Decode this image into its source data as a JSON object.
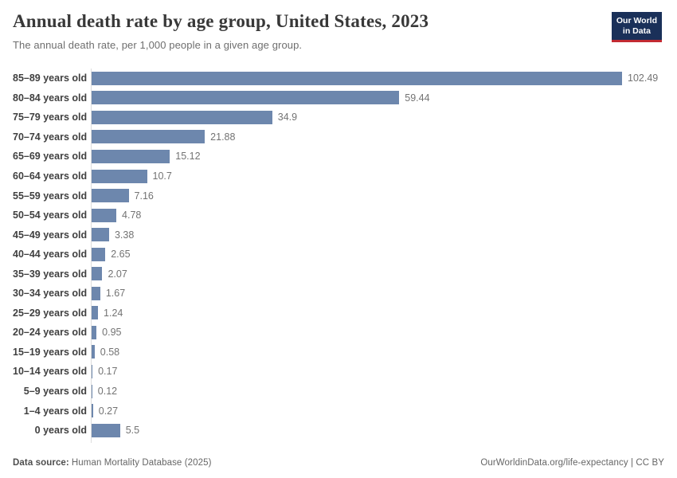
{
  "header": {
    "logo": {
      "line1": "Our World",
      "line2": "in Data"
    }
  },
  "chart_data": {
    "type": "bar",
    "orientation": "horizontal",
    "title": "Annual death rate by age group, United States, 2023",
    "subtitle": "The annual death rate, per 1,000 people in a given age group.",
    "categories": [
      "85–89 years old",
      "80–84 years old",
      "75–79 years old",
      "70–74 years old",
      "65–69 years old",
      "60–64 years old",
      "55–59 years old",
      "50–54 years old",
      "45–49 years old",
      "40–44 years old",
      "35–39 years old",
      "30–34 years old",
      "25–29 years old",
      "20–24 years old",
      "15–19 years old",
      "10–14 years old",
      "5–9 years old",
      "1–4 years old",
      "0 years old"
    ],
    "values": [
      102.49,
      59.44,
      34.9,
      21.88,
      15.12,
      10.7,
      7.16,
      4.78,
      3.38,
      2.65,
      2.07,
      1.67,
      1.24,
      0.95,
      0.58,
      0.17,
      0.12,
      0.27,
      5.5
    ],
    "value_labels": [
      "102.49",
      "59.44",
      "34.9",
      "21.88",
      "15.12",
      "10.7",
      "7.16",
      "4.78",
      "3.38",
      "2.65",
      "2.07",
      "1.67",
      "1.24",
      "0.95",
      "0.58",
      "0.17",
      "0.12",
      "0.27",
      "5.5"
    ],
    "xlim": [
      0,
      105
    ],
    "grid": false,
    "legend": false,
    "bar_color": "#6d87ad"
  },
  "colors": {
    "bar": "#6d87ad",
    "axis_line": "#dddddd",
    "logo_bg": "#1a3059",
    "logo_accent": "#c22a32",
    "title_text": "#383838",
    "subtitle_text": "#6e6e6e",
    "category_label": "#404040",
    "value_label": "#737373",
    "footer_text": "#666666"
  },
  "footer": {
    "source_label": "Data source:",
    "source_text": "Human Mortality Database (2025)",
    "credit": "OurWorldinData.org/life-expectancy | CC BY"
  }
}
